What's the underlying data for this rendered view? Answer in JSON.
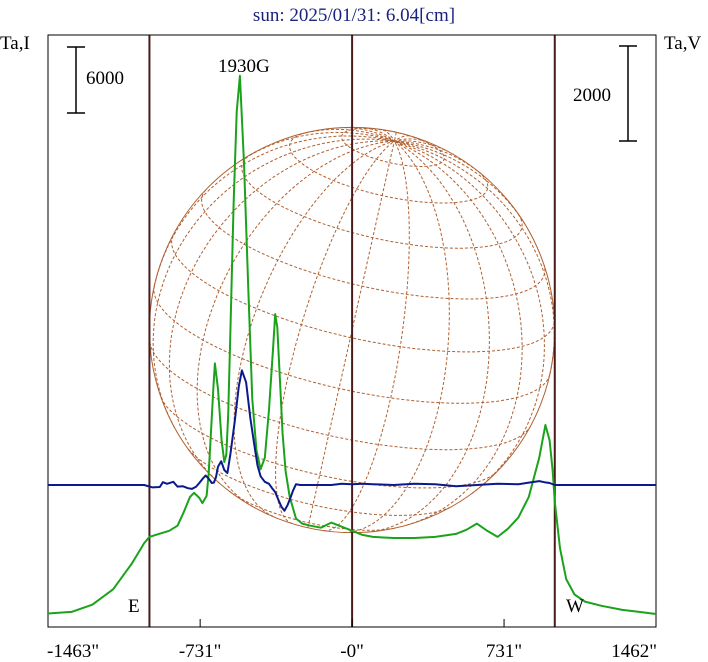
{
  "chart_data": {
    "type": "line",
    "title": "sun: 2025/01/31: 6.04[cm]",
    "left_axis_label": "Ta,I",
    "right_axis_label": "Ta,V",
    "left_scale_bar": "6000",
    "right_scale_bar": "2000",
    "peak_annotation": "1930G",
    "east_label": "E",
    "west_label": "W",
    "x_ticks": [
      {
        "value": -1463,
        "label": "-1463\""
      },
      {
        "value": -731,
        "label": "-731\""
      },
      {
        "value": 0,
        "label": "-0\""
      },
      {
        "value": 731,
        "label": "731\""
      },
      {
        "value": 1462,
        "label": "1462\""
      }
    ],
    "xlim": [
      -1463,
      1462
    ],
    "vertical_markers_arcsec": [
      -975,
      0,
      975
    ],
    "disk": {
      "center_arcsec": [
        0,
        0
      ],
      "radius_arcsec": 975
    },
    "colors": {
      "title": "#1a237e",
      "stokes_I": "#1aa31a",
      "stokes_V": "#0a1a8c",
      "markers": "#4a1a1a",
      "disk": "#b06030",
      "frame": "#000000"
    },
    "series": [
      {
        "role": "I",
        "x": [
          -1463,
          -1350,
          -1250,
          -1150,
          -1060,
          -1000,
          -975,
          -930,
          -880,
          -840,
          -810,
          -780,
          -760,
          -735,
          -720,
          -700,
          -690,
          -680,
          -668,
          -660,
          -645,
          -628,
          -615,
          -605,
          -596,
          -585,
          -570,
          -555,
          -540,
          -520,
          -500,
          -480,
          -460,
          -440,
          -420,
          -400,
          -380,
          -370,
          -360,
          -345,
          -335,
          -320,
          -300,
          -270,
          -240,
          -200,
          -150,
          -100,
          -50,
          0,
          50,
          100,
          200,
          300,
          400,
          500,
          550,
          600,
          650,
          700,
          750,
          800,
          850,
          900,
          930,
          950,
          965,
          975,
          1000,
          1030,
          1070,
          1120,
          1200,
          1300,
          1400,
          1462
        ],
        "y": [
          0.15,
          0.3,
          1.0,
          2.5,
          5.0,
          7.0,
          7.6,
          7.9,
          8.2,
          8.7,
          10.0,
          11.5,
          11.9,
          11.4,
          10.9,
          11.6,
          13.8,
          17.5,
          22.0,
          24.5,
          22.0,
          17.0,
          14.9,
          15.6,
          19.5,
          28.0,
          40.0,
          49.0,
          52.5,
          44.0,
          32.0,
          21.0,
          16.0,
          14.2,
          15.3,
          20.0,
          26.0,
          29.3,
          28.0,
          22.0,
          17.8,
          14.0,
          11.5,
          9.4,
          8.9,
          8.7,
          8.5,
          9.0,
          8.6,
          8.2,
          7.8,
          7.6,
          7.5,
          7.5,
          7.6,
          7.9,
          8.3,
          8.9,
          8.2,
          7.6,
          8.4,
          9.5,
          11.5,
          15.3,
          18.5,
          17.0,
          14.0,
          11.0,
          6.5,
          3.5,
          2.0,
          1.3,
          0.9,
          0.5,
          0.25,
          0.1
        ]
      },
      {
        "role": "V",
        "x": [
          -1463,
          -1300,
          -1150,
          -1050,
          -1000,
          -960,
          -925,
          -910,
          -890,
          -860,
          -840,
          -815,
          -790,
          -770,
          -750,
          -735,
          -720,
          -705,
          -690,
          -675,
          -665,
          -655,
          -645,
          -630,
          -615,
          -600,
          -585,
          -565,
          -545,
          -530,
          -510,
          -490,
          -470,
          -455,
          -440,
          -420,
          -400,
          -385,
          -370,
          -355,
          -340,
          -325,
          -310,
          -295,
          -285,
          -270,
          -250,
          -225,
          -200,
          -150,
          -100,
          -50,
          0,
          50,
          100,
          200,
          300,
          400,
          500,
          600,
          700,
          800,
          850,
          900,
          925,
          950,
          975,
          1000,
          1100,
          1200,
          1300,
          1400,
          1462
        ],
        "y": [
          0,
          0,
          0,
          0,
          0,
          -0.6,
          -0.5,
          0.7,
          0.3,
          0.8,
          -0.4,
          -0.3,
          -0.8,
          -1.0,
          -0.4,
          0.5,
          1.5,
          2.4,
          1.6,
          0.5,
          0.6,
          2.0,
          4.6,
          6.0,
          3.8,
          3.0,
          8.0,
          16.0,
          25.0,
          29.0,
          26.0,
          17.0,
          10.0,
          5.0,
          2.2,
          0.8,
          0.3,
          -0.8,
          -1.8,
          -3.7,
          -5.5,
          -6.5,
          -5.0,
          -3.0,
          -1.5,
          0.2,
          0,
          0,
          0,
          0,
          0,
          0.3,
          0.2,
          0.3,
          0.2,
          0,
          0.3,
          0.2,
          -0.3,
          0,
          0.3,
          0.2,
          0.6,
          1.0,
          0.7,
          0.5,
          0,
          0,
          0,
          0,
          0,
          0,
          0
        ]
      }
    ]
  }
}
